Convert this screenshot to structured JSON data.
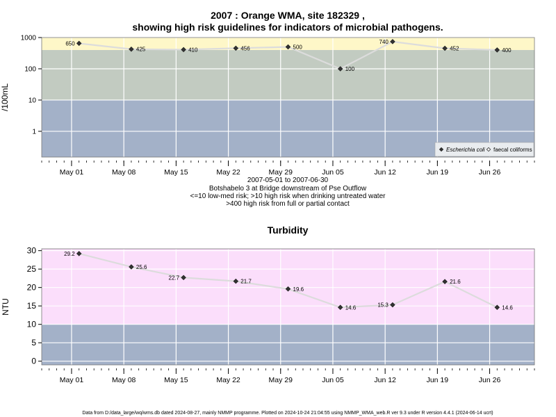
{
  "page": {
    "title_line1": "2007 : Orange WMA, site 182329 ,",
    "title_line2": "showing high risk guidelines for indicators of microbial pathogens.",
    "caption": [
      "2007-05-01 to 2007-06-30",
      "Botshabelo 3 at Bridge downstream of Pse Outflow",
      "<=10 low-med risk; >10 high risk when drinking untreated water",
      ">400 high risk from full or partial contact"
    ],
    "footer": "Data from D:/data_large/wq/wms.db dated 2024-08-27, mainly NMMP programme. Plotted on 2024-10-24 21:04:55 using NMMP_WMA_web.R ver 9.3 under R version 4.4.1 (2024-06-14 ucrt)"
  },
  "colors": {
    "band_high": "#fef7c8",
    "band_mid": "#c2cbc1",
    "band_low": "#a3b1c8",
    "band_turb_high": "#fbdefb",
    "line": "#dcdcdc",
    "marker": "#333333",
    "grid": "#ffffff"
  },
  "chart_data": [
    {
      "type": "line",
      "title": "",
      "ylabel": "/100mL",
      "yscale": "log",
      "ylim": [
        0.15,
        1000
      ],
      "yticks": [
        "1000",
        "100",
        "10",
        "1"
      ],
      "ytick_values": [
        1000,
        100,
        10,
        1
      ],
      "xlim": [
        "2007-04-27",
        "2007-07-02"
      ],
      "xticks": [
        "May 01",
        "May 08",
        "May 15",
        "May 22",
        "May 29",
        "Jun 05",
        "Jun 12",
        "Jun 19",
        "Jun 26"
      ],
      "xtick_dates": [
        "2007-05-01",
        "2007-05-08",
        "2007-05-15",
        "2007-05-22",
        "2007-05-29",
        "2007-06-05",
        "2007-06-12",
        "2007-06-19",
        "2007-06-26"
      ],
      "bands": [
        {
          "from": 0.15,
          "to": 10,
          "color": "band_low"
        },
        {
          "from": 10,
          "to": 400,
          "color": "band_mid"
        },
        {
          "from": 400,
          "to": 1000,
          "color": "band_high"
        }
      ],
      "grid": true,
      "legend_position": "bottom-right",
      "series": [
        {
          "name": "Escherichia coli",
          "marker": "filled-diamond",
          "x": [
            "2007-05-02",
            "2007-05-09",
            "2007-05-16",
            "2007-05-23",
            "2007-05-30",
            "2007-06-06",
            "2007-06-13",
            "2007-06-20",
            "2007-06-27"
          ],
          "values": [
            650,
            425,
            410,
            456,
            500,
            100,
            740,
            452,
            400
          ],
          "labels": [
            "650",
            "425",
            "410",
            "456",
            "500",
            "100",
            "740",
            "452",
            "400"
          ]
        },
        {
          "name": "faecal coliforms",
          "marker": "open-diamond",
          "x": [],
          "values": [],
          "labels": []
        }
      ]
    },
    {
      "type": "line",
      "title": "Turbidity",
      "ylabel": "NTU",
      "yscale": "linear",
      "ylim": [
        -1,
        30.5
      ],
      "yticks": [
        "30",
        "25",
        "20",
        "15",
        "10",
        "5",
        "0"
      ],
      "ytick_values": [
        30,
        25,
        20,
        15,
        10,
        5,
        0
      ],
      "xlim": [
        "2007-04-27",
        "2007-07-02"
      ],
      "xticks": [
        "May 01",
        "May 08",
        "May 15",
        "May 22",
        "May 29",
        "Jun 05",
        "Jun 12",
        "Jun 19",
        "Jun 26"
      ],
      "xtick_dates": [
        "2007-05-01",
        "2007-05-08",
        "2007-05-15",
        "2007-05-22",
        "2007-05-29",
        "2007-06-05",
        "2007-06-12",
        "2007-06-19",
        "2007-06-26"
      ],
      "bands": [
        {
          "from": -1,
          "to": 10,
          "color": "band_low"
        },
        {
          "from": 10,
          "to": 30.5,
          "color": "band_turb_high"
        }
      ],
      "grid": true,
      "series": [
        {
          "x": [
            "2007-05-02",
            "2007-05-09",
            "2007-05-16",
            "2007-05-23",
            "2007-05-30",
            "2007-06-06",
            "2007-06-13",
            "2007-06-20",
            "2007-06-27"
          ],
          "values": [
            29.2,
            25.6,
            22.7,
            21.7,
            19.6,
            14.6,
            15.3,
            21.6,
            14.6
          ],
          "labels": [
            "29.2",
            "25.6",
            "22.7",
            "21.7",
            "19.6",
            "14.6",
            "15.3",
            "21.6",
            "14.6"
          ]
        }
      ]
    }
  ]
}
